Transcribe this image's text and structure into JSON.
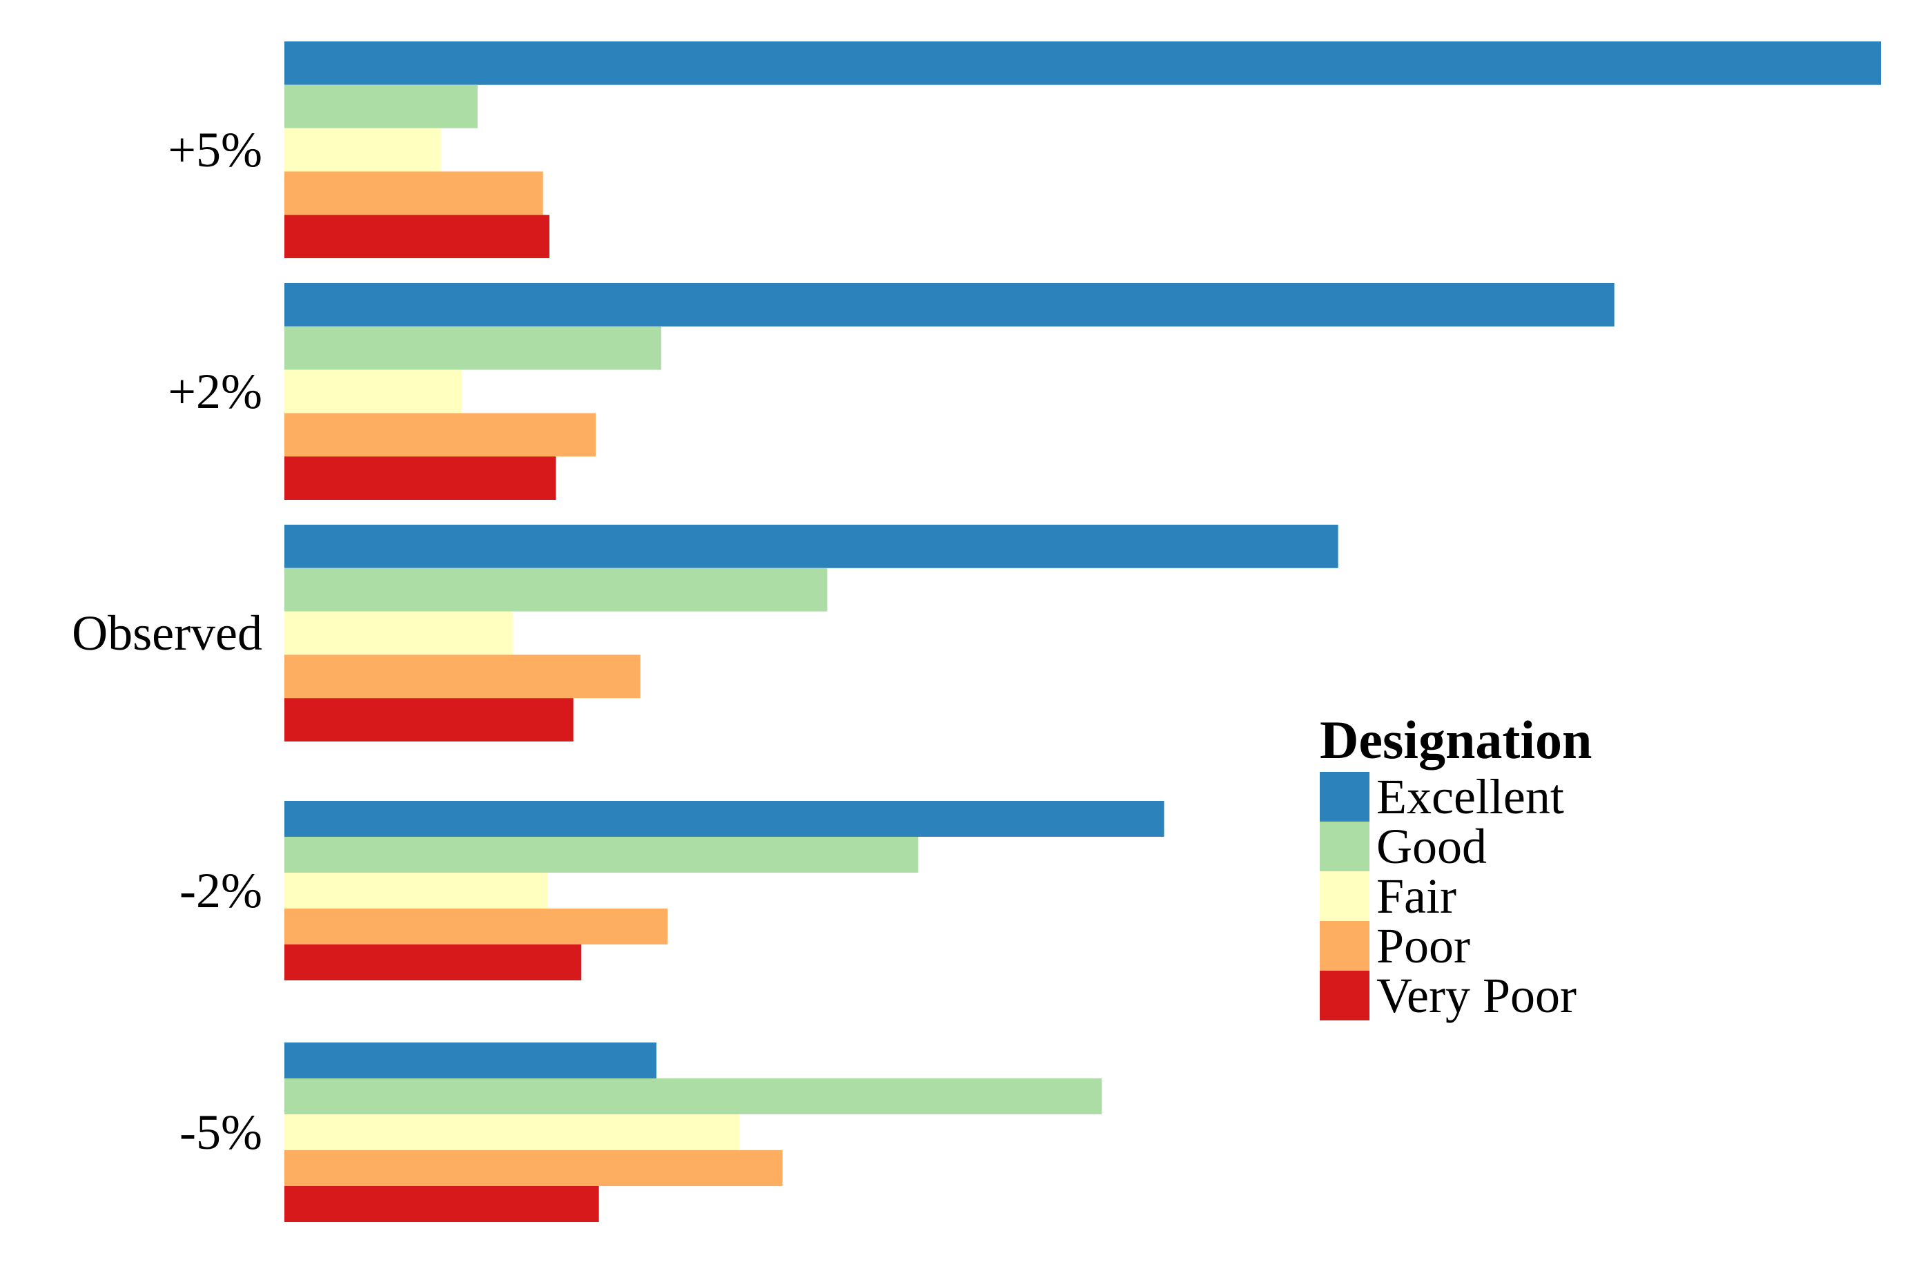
{
  "chart_data": {
    "type": "bar",
    "orientation": "horizontal",
    "title": "",
    "xlabel": "",
    "ylabel": "",
    "grid": false,
    "legend_position": "right",
    "categories": [
      "+5%",
      "+2%",
      "Observed",
      "-2%",
      "-5%"
    ],
    "xlim": [
      0,
      100
    ],
    "legend": {
      "title": "Designation"
    },
    "series": [
      {
        "name": "Excellent",
        "color": "#2c82ba",
        "values": [
          100,
          83.3,
          66,
          55.1,
          23.3
        ]
      },
      {
        "name": "Good",
        "color": "#abdda4",
        "values": [
          12.1,
          23.6,
          34,
          39.7,
          51.2
        ]
      },
      {
        "name": "Fair",
        "color": "#ffffbf",
        "values": [
          9.8,
          11.1,
          14.3,
          16.5,
          28.5
        ]
      },
      {
        "name": "Poor",
        "color": "#fdae61",
        "values": [
          16.2,
          19.5,
          22.3,
          24,
          31.2
        ]
      },
      {
        "name": "Very Poor",
        "color": "#d7191c",
        "values": [
          16.6,
          17,
          18.1,
          18.6,
          19.7
        ]
      }
    ]
  }
}
